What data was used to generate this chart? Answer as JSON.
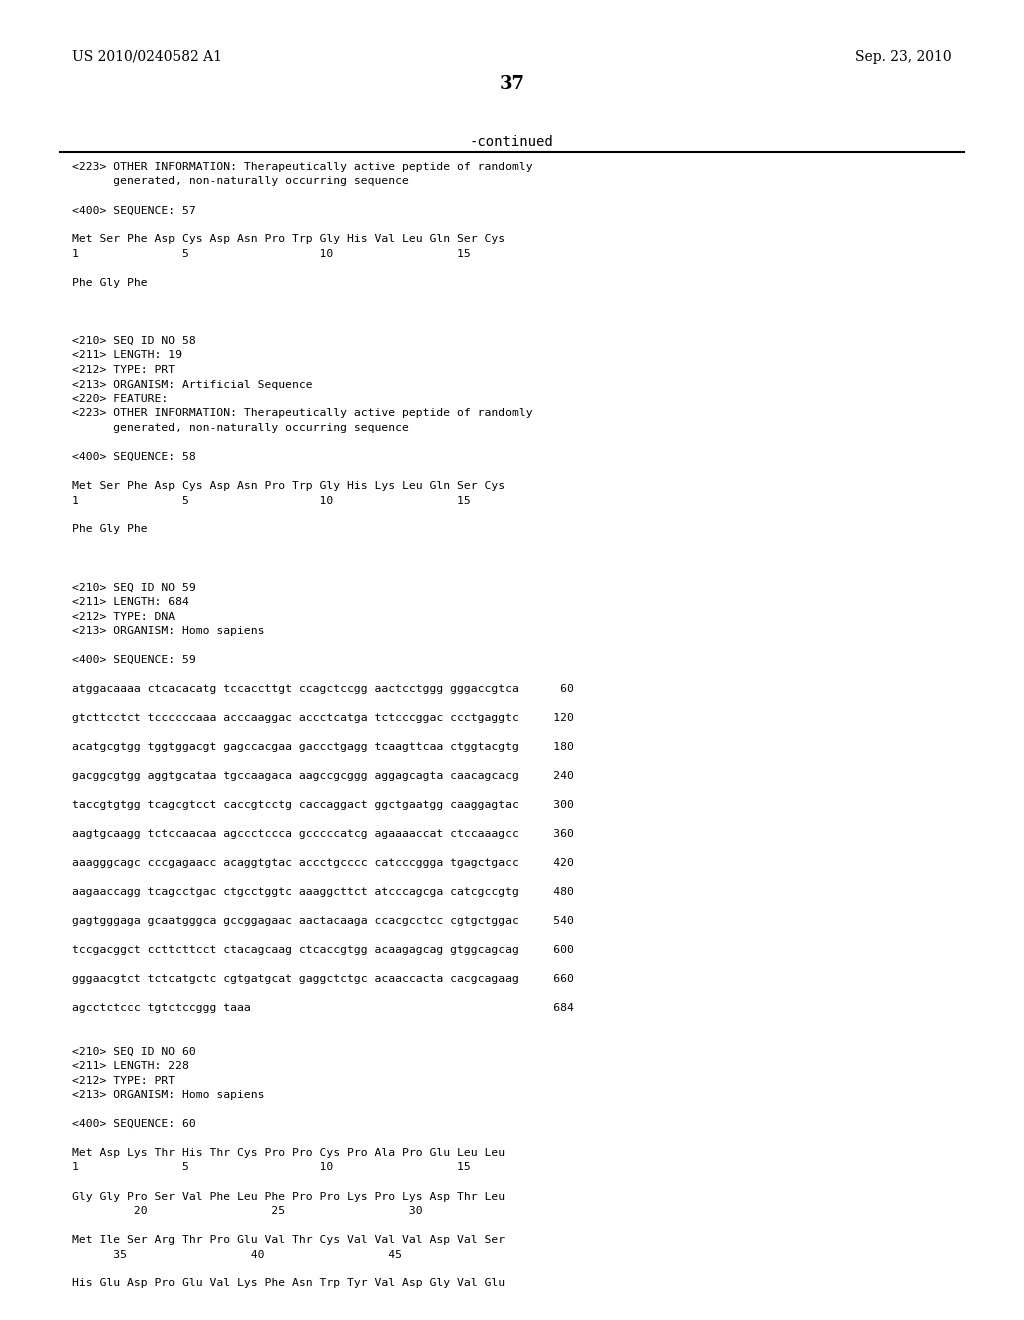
{
  "bg_color": "#ffffff",
  "header_left": "US 2010/0240582 A1",
  "header_right": "Sep. 23, 2010",
  "page_number": "37",
  "continued_label": "-continued",
  "lines": [
    "<223> OTHER INFORMATION: Therapeutically active peptide of randomly",
    "      generated, non-naturally occurring sequence",
    "",
    "<400> SEQUENCE: 57",
    "",
    "Met Ser Phe Asp Cys Asp Asn Pro Trp Gly His Val Leu Gln Ser Cys",
    "1               5                   10                  15",
    "",
    "Phe Gly Phe",
    "",
    "",
    "",
    "<210> SEQ ID NO 58",
    "<211> LENGTH: 19",
    "<212> TYPE: PRT",
    "<213> ORGANISM: Artificial Sequence",
    "<220> FEATURE:",
    "<223> OTHER INFORMATION: Therapeutically active peptide of randomly",
    "      generated, non-naturally occurring sequence",
    "",
    "<400> SEQUENCE: 58",
    "",
    "Met Ser Phe Asp Cys Asp Asn Pro Trp Gly His Lys Leu Gln Ser Cys",
    "1               5                   10                  15",
    "",
    "Phe Gly Phe",
    "",
    "",
    "",
    "<210> SEQ ID NO 59",
    "<211> LENGTH: 684",
    "<212> TYPE: DNA",
    "<213> ORGANISM: Homo sapiens",
    "",
    "<400> SEQUENCE: 59",
    "",
    "atggacaaaa ctcacacatg tccaccttgt ccagctccgg aactcctggg gggaccgtca      60",
    "",
    "gtcttcctct tccccccaaa acccaaggac accctcatga tctcccggac ccctgaggtc     120",
    "",
    "acatgcgtgg tggtggacgt gagccacgaa gaccctgagg tcaagttcaa ctggtacgtg     180",
    "",
    "gacggcgtgg aggtgcataa tgccaagaca aagccgcggg aggagcagta caacagcacg     240",
    "",
    "taccgtgtgg tcagcgtcct caccgtcctg caccaggact ggctgaatgg caaggagtac     300",
    "",
    "aagtgcaagg tctccaacaa agccctccca gcccccatcg agaaaaccat ctccaaagcc     360",
    "",
    "aaagggcagc cccgagaacc acaggtgtac accctgcccc catcccggga tgagctgacc     420",
    "",
    "aagaaccagg tcagcctgac ctgcctggtc aaaggcttct atcccagcga catcgccgtg     480",
    "",
    "gagtgggaga gcaatgggca gccggagaac aactacaaga ccacgcctcc cgtgctggac     540",
    "",
    "tccgacggct ccttcttcct ctacagcaag ctcaccgtgg acaagagcag gtggcagcag     600",
    "",
    "gggaacgtct tctcatgctc cgtgatgcat gaggctctgc acaaccacta cacgcagaag     660",
    "",
    "agcctctccc tgtctccggg taaa                                            684",
    "",
    "",
    "<210> SEQ ID NO 60",
    "<211> LENGTH: 228",
    "<212> TYPE: PRT",
    "<213> ORGANISM: Homo sapiens",
    "",
    "<400> SEQUENCE: 60",
    "",
    "Met Asp Lys Thr His Thr Cys Pro Pro Cys Pro Ala Pro Glu Leu Leu",
    "1               5                   10                  15",
    "",
    "Gly Gly Pro Ser Val Phe Leu Phe Pro Pro Lys Pro Lys Asp Thr Leu",
    "         20                  25                  30",
    "",
    "Met Ile Ser Arg Thr Pro Glu Val Thr Cys Val Val Val Asp Val Ser",
    "      35                  40                  45",
    "",
    "His Glu Asp Pro Glu Val Lys Phe Asn Trp Tyr Val Asp Gly Val Glu"
  ]
}
